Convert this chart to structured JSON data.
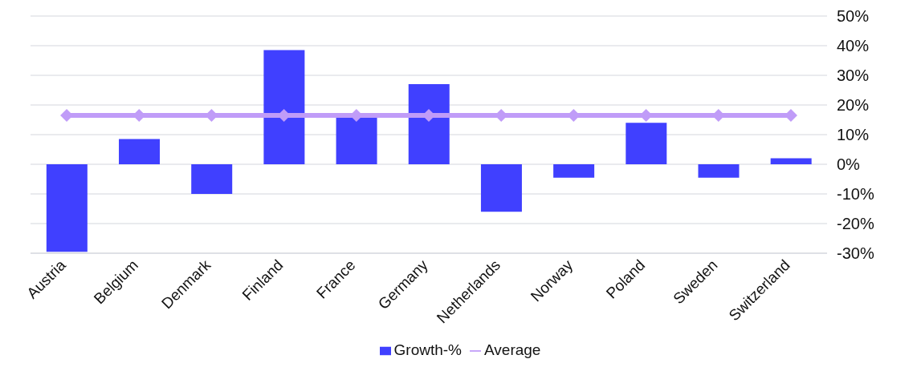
{
  "chart_data": {
    "type": "bar",
    "categories": [
      "Austria",
      "Belgium",
      "Denmark",
      "Finland",
      "France",
      "Germany",
      "Netherlands",
      "Norway",
      "Poland",
      "Sweden",
      "Switzerland"
    ],
    "series": [
      {
        "name": "Growth-%",
        "color": "#4040ff",
        "values": [
          -29.5,
          8.5,
          -10,
          38.5,
          16,
          27,
          -16,
          -4.5,
          14,
          -4.5,
          2
        ]
      },
      {
        "name": "Average",
        "type": "line",
        "color": "#c09cf8",
        "marker": "diamond",
        "values": [
          16.5,
          16.5,
          16.5,
          16.5,
          16.5,
          16.5,
          16.5,
          16.5,
          16.5,
          16.5,
          16.5
        ]
      }
    ],
    "ylim": [
      -30,
      50
    ],
    "yticks": [
      {
        "value": -30,
        "label": "-30%"
      },
      {
        "value": -20,
        "label": "-20%"
      },
      {
        "value": -10,
        "label": "-10%"
      },
      {
        "value": 0,
        "label": "0%"
      },
      {
        "value": 10,
        "label": "10%"
      },
      {
        "value": 20,
        "label": "20%"
      },
      {
        "value": 30,
        "label": "30%"
      },
      {
        "value": 40,
        "label": "40%"
      },
      {
        "value": 50,
        "label": "50%"
      }
    ],
    "grid": "y",
    "legend": "bottom"
  }
}
